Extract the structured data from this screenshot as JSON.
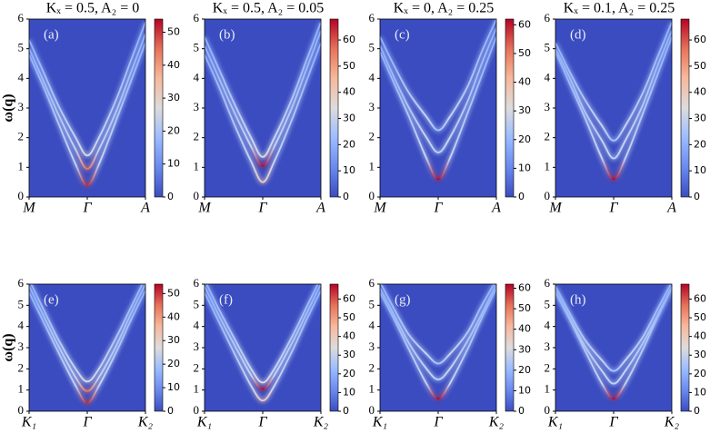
{
  "chart_data": [
    {
      "type": "heatmap",
      "title": "Kₓ = 0.5, A₂ = 0",
      "label": "(a)",
      "ylabel": "ω(q)",
      "x": [
        0,
        0.25,
        0.5,
        0.8,
        1,
        1.2,
        1.5,
        1.75,
        2
      ],
      "xlim": [
        0,
        2
      ],
      "xticks": [
        {
          "value": 0,
          "label": "M"
        },
        {
          "value": 1,
          "label": "Γ"
        },
        {
          "value": 2,
          "label": "A"
        }
      ],
      "ylim": [
        0,
        6
      ],
      "yticks": [
        0,
        1,
        2,
        3,
        4,
        5,
        6
      ],
      "clim": [
        0,
        54
      ],
      "cticks": [
        0,
        10,
        20,
        30,
        40,
        50
      ],
      "series": [
        {
          "color": "#c0282f",
          "values": [
            4.8,
            3.7,
            2.5,
            1.1,
            0.4,
            1.1,
            2.6,
            3.9,
            5.2
          ]
        },
        {
          "color": "#e57058",
          "values": [
            5.0,
            3.9,
            2.8,
            1.6,
            0.95,
            1.6,
            2.9,
            4.2,
            5.5
          ]
        },
        {
          "color": "#dcdddd",
          "values": [
            5.3,
            4.2,
            3.1,
            2.0,
            1.4,
            2.0,
            3.3,
            4.6,
            5.9
          ]
        }
      ]
    },
    {
      "type": "heatmap",
      "title": "Kₓ = 0.5, A₂ = 0.05",
      "label": "(b)",
      "x": [
        0,
        0.25,
        0.5,
        0.8,
        1,
        1.2,
        1.5,
        1.75,
        2
      ],
      "xlim": [
        0,
        2
      ],
      "xticks": [
        {
          "value": 0,
          "label": "M"
        },
        {
          "value": 1,
          "label": "Γ"
        },
        {
          "value": 2,
          "label": "A"
        }
      ],
      "ylim": [
        0,
        6
      ],
      "yticks": [
        0,
        1,
        2,
        3,
        4,
        5,
        6
      ],
      "clim": [
        0,
        68
      ],
      "cticks": [
        0,
        10,
        20,
        30,
        40,
        50,
        60
      ],
      "series": [
        {
          "color": "#f2c9b4",
          "values": [
            4.8,
            3.7,
            2.5,
            1.2,
            0.5,
            1.2,
            2.6,
            3.9,
            5.2
          ]
        },
        {
          "color": "#b40426",
          "values": [
            5.1,
            4.0,
            2.9,
            1.7,
            1.05,
            1.7,
            3.0,
            4.3,
            5.6
          ]
        },
        {
          "color": "#dcdddd",
          "values": [
            5.4,
            4.3,
            3.2,
            2.0,
            1.35,
            2.0,
            3.3,
            4.6,
            5.9
          ]
        }
      ]
    },
    {
      "type": "heatmap",
      "title": "Kₓ = 0, A₂ = 0.25",
      "label": "(c)",
      "x": [
        0,
        0.25,
        0.5,
        0.8,
        1,
        1.2,
        1.5,
        1.75,
        2
      ],
      "xlim": [
        0,
        2
      ],
      "xticks": [
        {
          "value": 0,
          "label": "M"
        },
        {
          "value": 1,
          "label": "Γ"
        },
        {
          "value": 2,
          "label": "A"
        }
      ],
      "ylim": [
        0,
        6
      ],
      "yticks": [
        0,
        1,
        2,
        3,
        4,
        5,
        6
      ],
      "clim": [
        0,
        62
      ],
      "cticks": [
        0,
        10,
        20,
        30,
        40,
        50,
        60
      ],
      "series": [
        {
          "color": "#b40426",
          "values": [
            4.9,
            3.8,
            2.7,
            1.3,
            0.6,
            1.3,
            2.8,
            4.1,
            5.4
          ]
        },
        {
          "color": "#bcd2f7",
          "values": [
            5.1,
            4.0,
            3.0,
            2.0,
            1.5,
            2.0,
            3.2,
            4.5,
            5.7
          ]
        },
        {
          "color": "#a3c2fe",
          "values": [
            5.4,
            4.4,
            3.5,
            2.7,
            2.25,
            2.7,
            3.7,
            4.9,
            6.0
          ]
        }
      ]
    },
    {
      "type": "heatmap",
      "title": "Kₓ = 0.1, A₂ = 0.25",
      "label": "(d)",
      "x": [
        0,
        0.25,
        0.5,
        0.8,
        1,
        1.2,
        1.5,
        1.75,
        2
      ],
      "xlim": [
        0,
        2
      ],
      "xticks": [
        {
          "value": 0,
          "label": "M"
        },
        {
          "value": 1,
          "label": "Γ"
        },
        {
          "value": 2,
          "label": "A"
        }
      ],
      "ylim": [
        0,
        6
      ],
      "yticks": [
        0,
        1,
        2,
        3,
        4,
        5,
        6
      ],
      "clim": [
        0,
        68
      ],
      "cticks": [
        0,
        10,
        20,
        30,
        40,
        50,
        60
      ],
      "series": [
        {
          "color": "#b40426",
          "values": [
            4.9,
            3.8,
            2.7,
            1.3,
            0.6,
            1.3,
            2.8,
            4.1,
            5.4
          ]
        },
        {
          "color": "#c0d4f5",
          "values": [
            5.0,
            4.0,
            2.9,
            1.9,
            1.3,
            1.9,
            3.1,
            4.4,
            5.6
          ]
        },
        {
          "color": "#a3c2fe",
          "values": [
            5.2,
            4.2,
            3.3,
            2.4,
            1.9,
            2.4,
            3.5,
            4.7,
            5.9
          ]
        }
      ]
    },
    {
      "type": "heatmap",
      "label": "(e)",
      "ylabel": "ω(q)",
      "x": [
        0,
        0.25,
        0.5,
        0.8,
        1,
        1.2,
        1.5,
        1.75,
        2
      ],
      "xlim": [
        0,
        2
      ],
      "xticks": [
        {
          "value": 0,
          "label": "K₁"
        },
        {
          "value": 1,
          "label": "Γ"
        },
        {
          "value": 2,
          "label": "K₂"
        }
      ],
      "ylim": [
        0,
        6
      ],
      "yticks": [
        0,
        1,
        2,
        3,
        4,
        5,
        6
      ],
      "clim": [
        0,
        54
      ],
      "cticks": [
        0,
        10,
        20,
        30,
        40,
        50
      ],
      "series": [
        {
          "color": "#c0282f",
          "values": [
            5.6,
            4.2,
            2.8,
            1.2,
            0.4,
            1.2,
            2.8,
            4.3,
            5.7
          ]
        },
        {
          "color": "#e57058",
          "values": [
            5.9,
            4.5,
            3.1,
            1.6,
            0.95,
            1.6,
            3.1,
            4.6,
            6.0
          ]
        },
        {
          "color": "#dcdddd",
          "values": [
            6.2,
            4.8,
            3.4,
            2.0,
            1.4,
            2.0,
            3.5,
            4.9,
            6.3
          ]
        }
      ]
    },
    {
      "type": "heatmap",
      "label": "(f)",
      "x": [
        0,
        0.25,
        0.5,
        0.8,
        1,
        1.2,
        1.5,
        1.75,
        2
      ],
      "xlim": [
        0,
        2
      ],
      "xticks": [
        {
          "value": 0,
          "label": "K₁"
        },
        {
          "value": 1,
          "label": "Γ"
        },
        {
          "value": 2,
          "label": "K₂"
        }
      ],
      "ylim": [
        0,
        6
      ],
      "yticks": [
        0,
        1,
        2,
        3,
        4,
        5,
        6
      ],
      "clim": [
        0,
        68
      ],
      "cticks": [
        0,
        10,
        20,
        30,
        40,
        50,
        60
      ],
      "series": [
        {
          "color": "#f2c9b4",
          "values": [
            5.6,
            4.2,
            2.8,
            1.2,
            0.5,
            1.2,
            2.8,
            4.3,
            5.7
          ]
        },
        {
          "color": "#b40426",
          "values": [
            5.9,
            4.5,
            3.2,
            1.7,
            1.05,
            1.7,
            3.2,
            4.6,
            6.0
          ]
        },
        {
          "color": "#dcdddd",
          "values": [
            6.2,
            4.8,
            3.5,
            2.0,
            1.35,
            2.0,
            3.5,
            4.9,
            6.3
          ]
        }
      ]
    },
    {
      "type": "heatmap",
      "label": "(g)",
      "x": [
        0,
        0.25,
        0.5,
        0.8,
        1,
        1.2,
        1.5,
        1.75,
        2
      ],
      "xlim": [
        0,
        2
      ],
      "xticks": [
        {
          "value": 0,
          "label": "K₁"
        },
        {
          "value": 1,
          "label": "Γ"
        },
        {
          "value": 2,
          "label": "K₂"
        }
      ],
      "ylim": [
        0,
        6
      ],
      "yticks": [
        0,
        1,
        2,
        3,
        4,
        5,
        6
      ],
      "clim": [
        0,
        62
      ],
      "cticks": [
        0,
        10,
        20,
        30,
        40,
        50,
        60
      ],
      "series": [
        {
          "color": "#b40426",
          "values": [
            5.6,
            4.3,
            2.9,
            1.3,
            0.6,
            1.3,
            2.9,
            4.4,
            5.8
          ]
        },
        {
          "color": "#bcd2f7",
          "values": [
            5.8,
            4.5,
            3.2,
            2.0,
            1.5,
            2.0,
            3.3,
            4.6,
            6.0
          ]
        },
        {
          "color": "#a3c2fe",
          "values": [
            6.1,
            4.8,
            3.6,
            2.7,
            2.25,
            2.7,
            3.7,
            5.0,
            6.2
          ]
        }
      ]
    },
    {
      "type": "heatmap",
      "label": "(h)",
      "x": [
        0,
        0.25,
        0.5,
        0.8,
        1,
        1.2,
        1.5,
        1.75,
        2
      ],
      "xlim": [
        0,
        2
      ],
      "xticks": [
        {
          "value": 0,
          "label": "K₁"
        },
        {
          "value": 1,
          "label": "Γ"
        },
        {
          "value": 2,
          "label": "K₂"
        }
      ],
      "ylim": [
        0,
        6
      ],
      "yticks": [
        0,
        1,
        2,
        3,
        4,
        5,
        6
      ],
      "clim": [
        0,
        68
      ],
      "cticks": [
        0,
        10,
        20,
        30,
        40,
        50,
        60
      ],
      "series": [
        {
          "color": "#b40426",
          "values": [
            5.6,
            4.3,
            2.9,
            1.3,
            0.6,
            1.3,
            2.9,
            4.4,
            5.8
          ]
        },
        {
          "color": "#c0d4f5",
          "values": [
            5.7,
            4.4,
            3.1,
            1.9,
            1.3,
            1.9,
            3.2,
            4.5,
            5.9
          ]
        },
        {
          "color": "#a3c2fe",
          "values": [
            5.9,
            4.6,
            3.4,
            2.4,
            1.9,
            2.4,
            3.5,
            4.8,
            6.1
          ]
        }
      ]
    }
  ]
}
